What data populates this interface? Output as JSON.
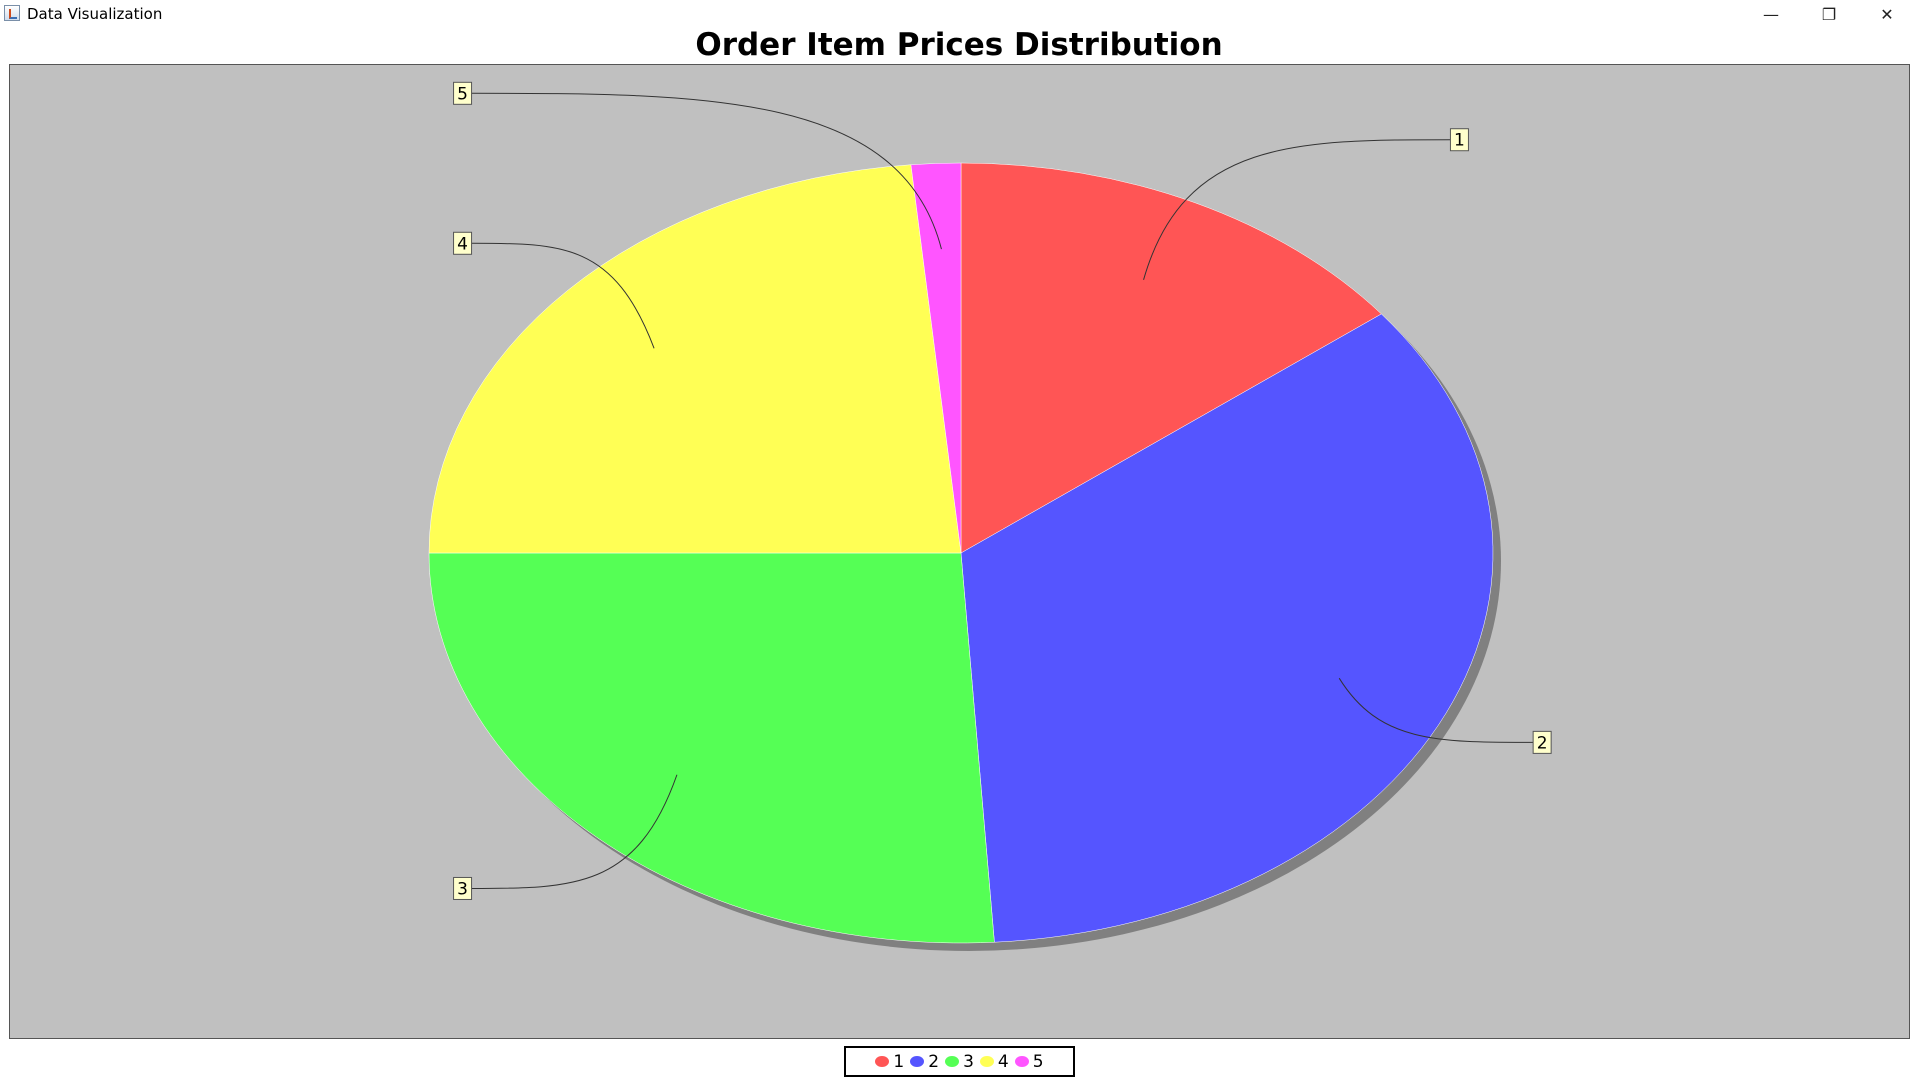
{
  "window": {
    "title": "Data Visualization",
    "minimize_glyph": "—",
    "maximize_glyph": "❐",
    "close_glyph": "✕"
  },
  "chart_data": {
    "type": "pie",
    "title": "Order Item Prices Distribution",
    "categories": [
      "1",
      "2",
      "3",
      "4",
      "5"
    ],
    "values": [
      14.5,
      34.5,
      26,
      23.5,
      1.5
    ],
    "colors": [
      "#ff5555",
      "#5555ff",
      "#55ff55",
      "#ffff55",
      "#ff55ff"
    ],
    "background": "#c0c0c0",
    "label_background": "#ffffcc",
    "start_angle": 90,
    "direction": "clockwise",
    "legend": {
      "position": "bottom"
    }
  }
}
